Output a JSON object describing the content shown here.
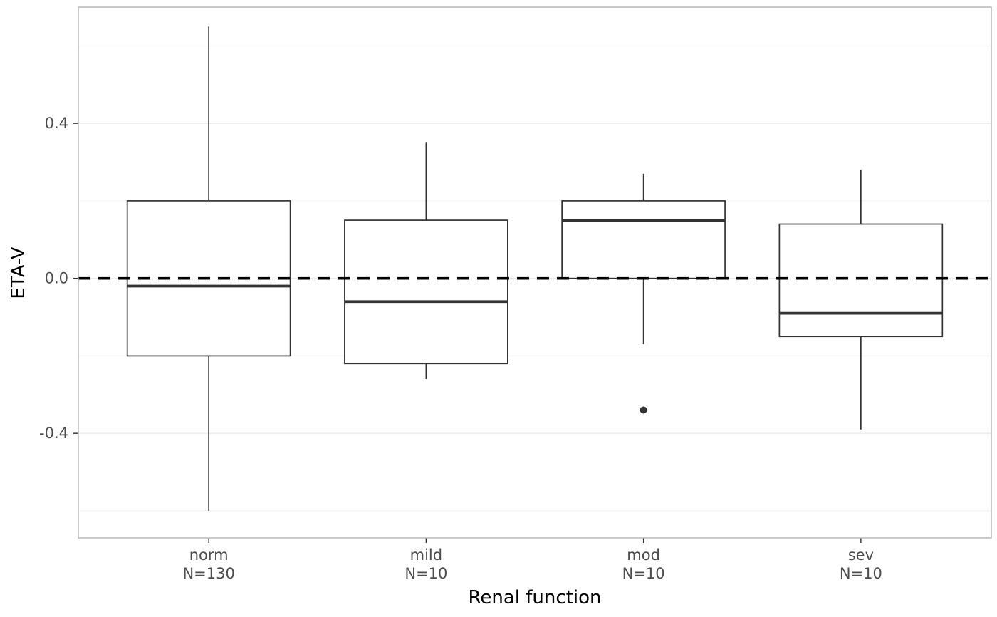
{
  "chart_data": {
    "type": "boxplot",
    "title": "",
    "xlabel": "Renal function",
    "ylabel": "ETA-V",
    "ylim": [
      -0.67,
      0.7
    ],
    "yticks": [
      0.4,
      0.0,
      -0.4
    ],
    "ytick_labels": [
      "0.4",
      "0.0",
      "-0.4"
    ],
    "yminor_ticks": [
      0.6,
      0.2,
      -0.2,
      -0.6
    ],
    "grid": true,
    "legend": "none",
    "reference_line": {
      "y": 0.0,
      "style": "dashed"
    },
    "groups": [
      {
        "label": "norm",
        "count_label": "N=130",
        "whisker_low": -0.6,
        "q1": -0.2,
        "median": -0.02,
        "q3": 0.2,
        "whisker_high": 0.65,
        "outliers": []
      },
      {
        "label": "mild",
        "count_label": "N=10",
        "whisker_low": -0.26,
        "q1": -0.22,
        "median": -0.06,
        "q3": 0.15,
        "whisker_high": 0.35,
        "outliers": []
      },
      {
        "label": "mod",
        "count_label": "N=10",
        "whisker_low": -0.17,
        "q1": 0.0,
        "median": 0.15,
        "q3": 0.2,
        "whisker_high": 0.27,
        "outliers": [
          -0.34
        ]
      },
      {
        "label": "sev",
        "count_label": "N=10",
        "whisker_low": -0.39,
        "q1": -0.15,
        "median": -0.09,
        "q3": 0.14,
        "whisker_high": 0.28,
        "outliers": []
      }
    ]
  },
  "colors": {
    "background": "#ffffff",
    "panel_border": "#b3b3b3",
    "grid_major": "#ebebeb",
    "grid_minor": "#f6f6f6",
    "box_stroke": "#333333",
    "median_stroke": "#333333",
    "reference_line": "#000000",
    "outlier_fill": "#333333",
    "tick_mark": "#333333",
    "tick_label": "#4d4d4d",
    "axis_title": "#000000"
  }
}
